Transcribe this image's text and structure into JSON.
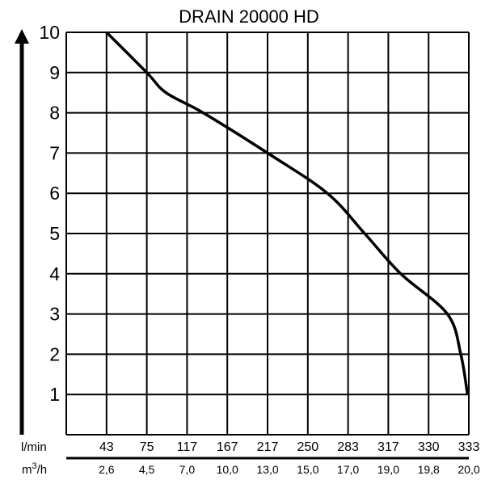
{
  "chart_data": {
    "type": "line",
    "title": "DRAIN 20000 HD",
    "x_unit_primary": "l/min",
    "x_unit_secondary": "m3/h",
    "x_ticks_primary": [
      "43",
      "75",
      "117",
      "167",
      "217",
      "250",
      "283",
      "317",
      "330",
      "333"
    ],
    "x_ticks_secondary": [
      "2,6",
      "4,5",
      "7,0",
      "10,0",
      "13,0",
      "15,0",
      "17,0",
      "19,0",
      "19,8",
      "20,0"
    ],
    "y_ticks": [
      "1",
      "2",
      "3",
      "4",
      "5",
      "6",
      "7",
      "8",
      "9",
      "10"
    ],
    "ylim": [
      0,
      10
    ],
    "grid": true,
    "series": [
      {
        "x_lmin": [
          43,
          75,
          95,
          137,
          217,
          266,
          297,
          321,
          331.4,
          332.4,
          332.9
        ],
        "y": [
          10,
          9,
          8.5,
          8,
          7,
          6,
          5,
          4,
          3,
          2,
          1
        ]
      }
    ],
    "colors": {
      "line": "#000000",
      "grid": "#000000"
    }
  }
}
